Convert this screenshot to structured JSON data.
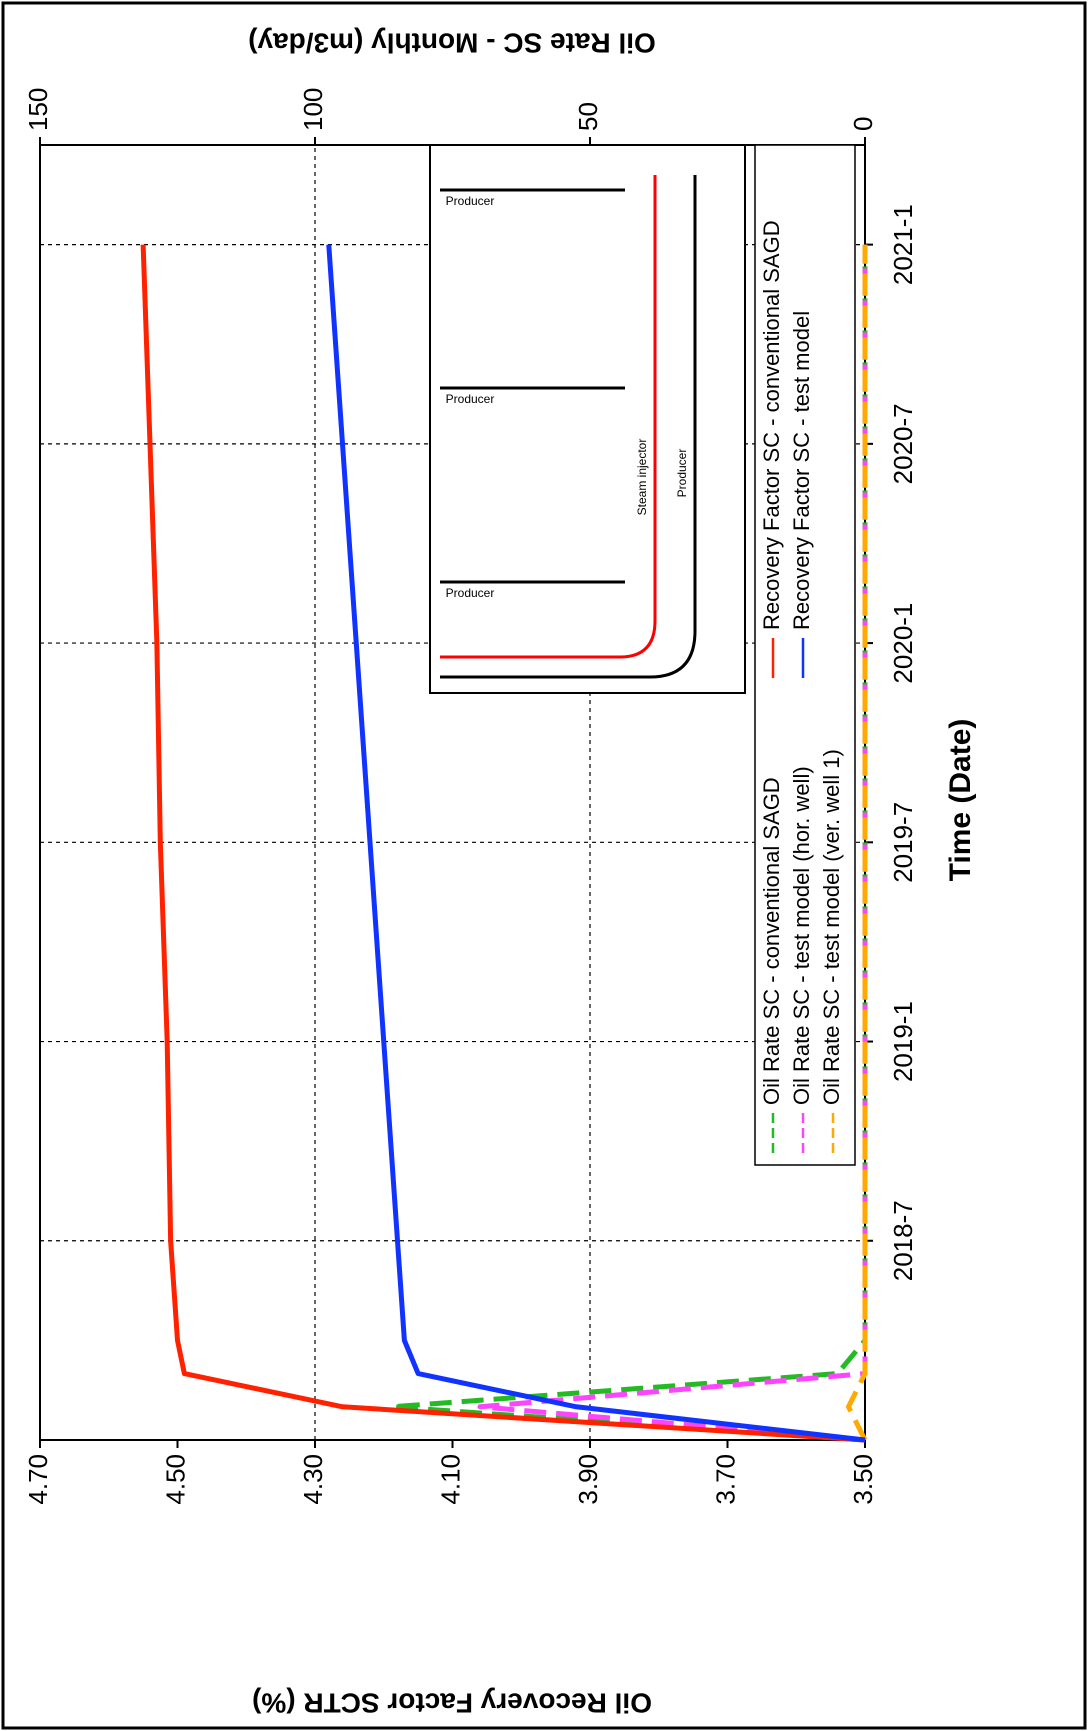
{
  "chart_data": {
    "type": "line",
    "x_label": "Time (Date)",
    "y_label": "Oil Recovery Factor SCTR (%)",
    "y2_label": "Oil Rate SC - Monthly (m3/day)",
    "x": [
      "2018-1",
      "2018-2",
      "2018-3",
      "2018-4",
      "2018-7",
      "2019-1",
      "2019-7",
      "2020-1",
      "2020-7",
      "2021-1"
    ],
    "xlim": [
      "2018-1",
      "2021-4"
    ],
    "xticks": [
      "2018-7",
      "2019-1",
      "2019-7",
      "2020-1",
      "2020-7",
      "2021-1"
    ],
    "ylim": [
      3.5,
      4.7
    ],
    "yticks": [
      {
        "value": 3.5,
        "label": "3.50"
      },
      {
        "value": 3.7,
        "label": "3.70"
      },
      {
        "value": 3.9,
        "label": "3.90"
      },
      {
        "value": 4.1,
        "label": "4.10"
      },
      {
        "value": 4.3,
        "label": "4.30"
      },
      {
        "value": 4.5,
        "label": "4.50"
      },
      {
        "value": 4.7,
        "label": "4.70"
      }
    ],
    "y2lim": [
      0,
      150
    ],
    "y2ticks": [
      0,
      50,
      100,
      150
    ],
    "grid": true,
    "series": [
      {
        "name": "Oil Rate SC - conventional SAGD",
        "color": "#22bb22",
        "line_style": "dashed",
        "axis": "y2",
        "values": [
          0,
          86,
          5,
          0,
          0,
          0,
          0,
          0,
          0,
          0
        ]
      },
      {
        "name": "Oil Rate SC - test model (hor. well)",
        "color": "#ff44ff",
        "line_style": "dashed",
        "axis": "y2",
        "values": [
          0,
          70,
          0,
          0,
          0,
          0,
          0,
          0,
          0,
          0
        ]
      },
      {
        "name": "Oil Rate SC - test model (ver. well 1)",
        "color": "#ffaa00",
        "line_style": "dashed",
        "axis": "y2",
        "values": [
          0,
          3,
          0,
          0,
          0,
          0,
          0,
          0,
          0,
          0
        ]
      },
      {
        "name": "Recovery Factor SC - conventional SAGD",
        "color": "#ff2200",
        "line_style": "solid",
        "values": [
          3.5,
          4.26,
          4.49,
          4.5,
          4.51,
          4.515,
          4.525,
          4.53,
          4.54,
          4.55
        ]
      },
      {
        "name": "Recovery Factor SC - test model",
        "color": "#1133ff",
        "line_style": "solid",
        "values": [
          3.5,
          3.92,
          4.15,
          4.17,
          4.18,
          4.2,
          4.22,
          4.24,
          4.26,
          4.28
        ]
      }
    ],
    "inset_labels": [
      "Producer",
      "Producer",
      "Producer",
      "Steam injector",
      "Producer"
    ]
  }
}
